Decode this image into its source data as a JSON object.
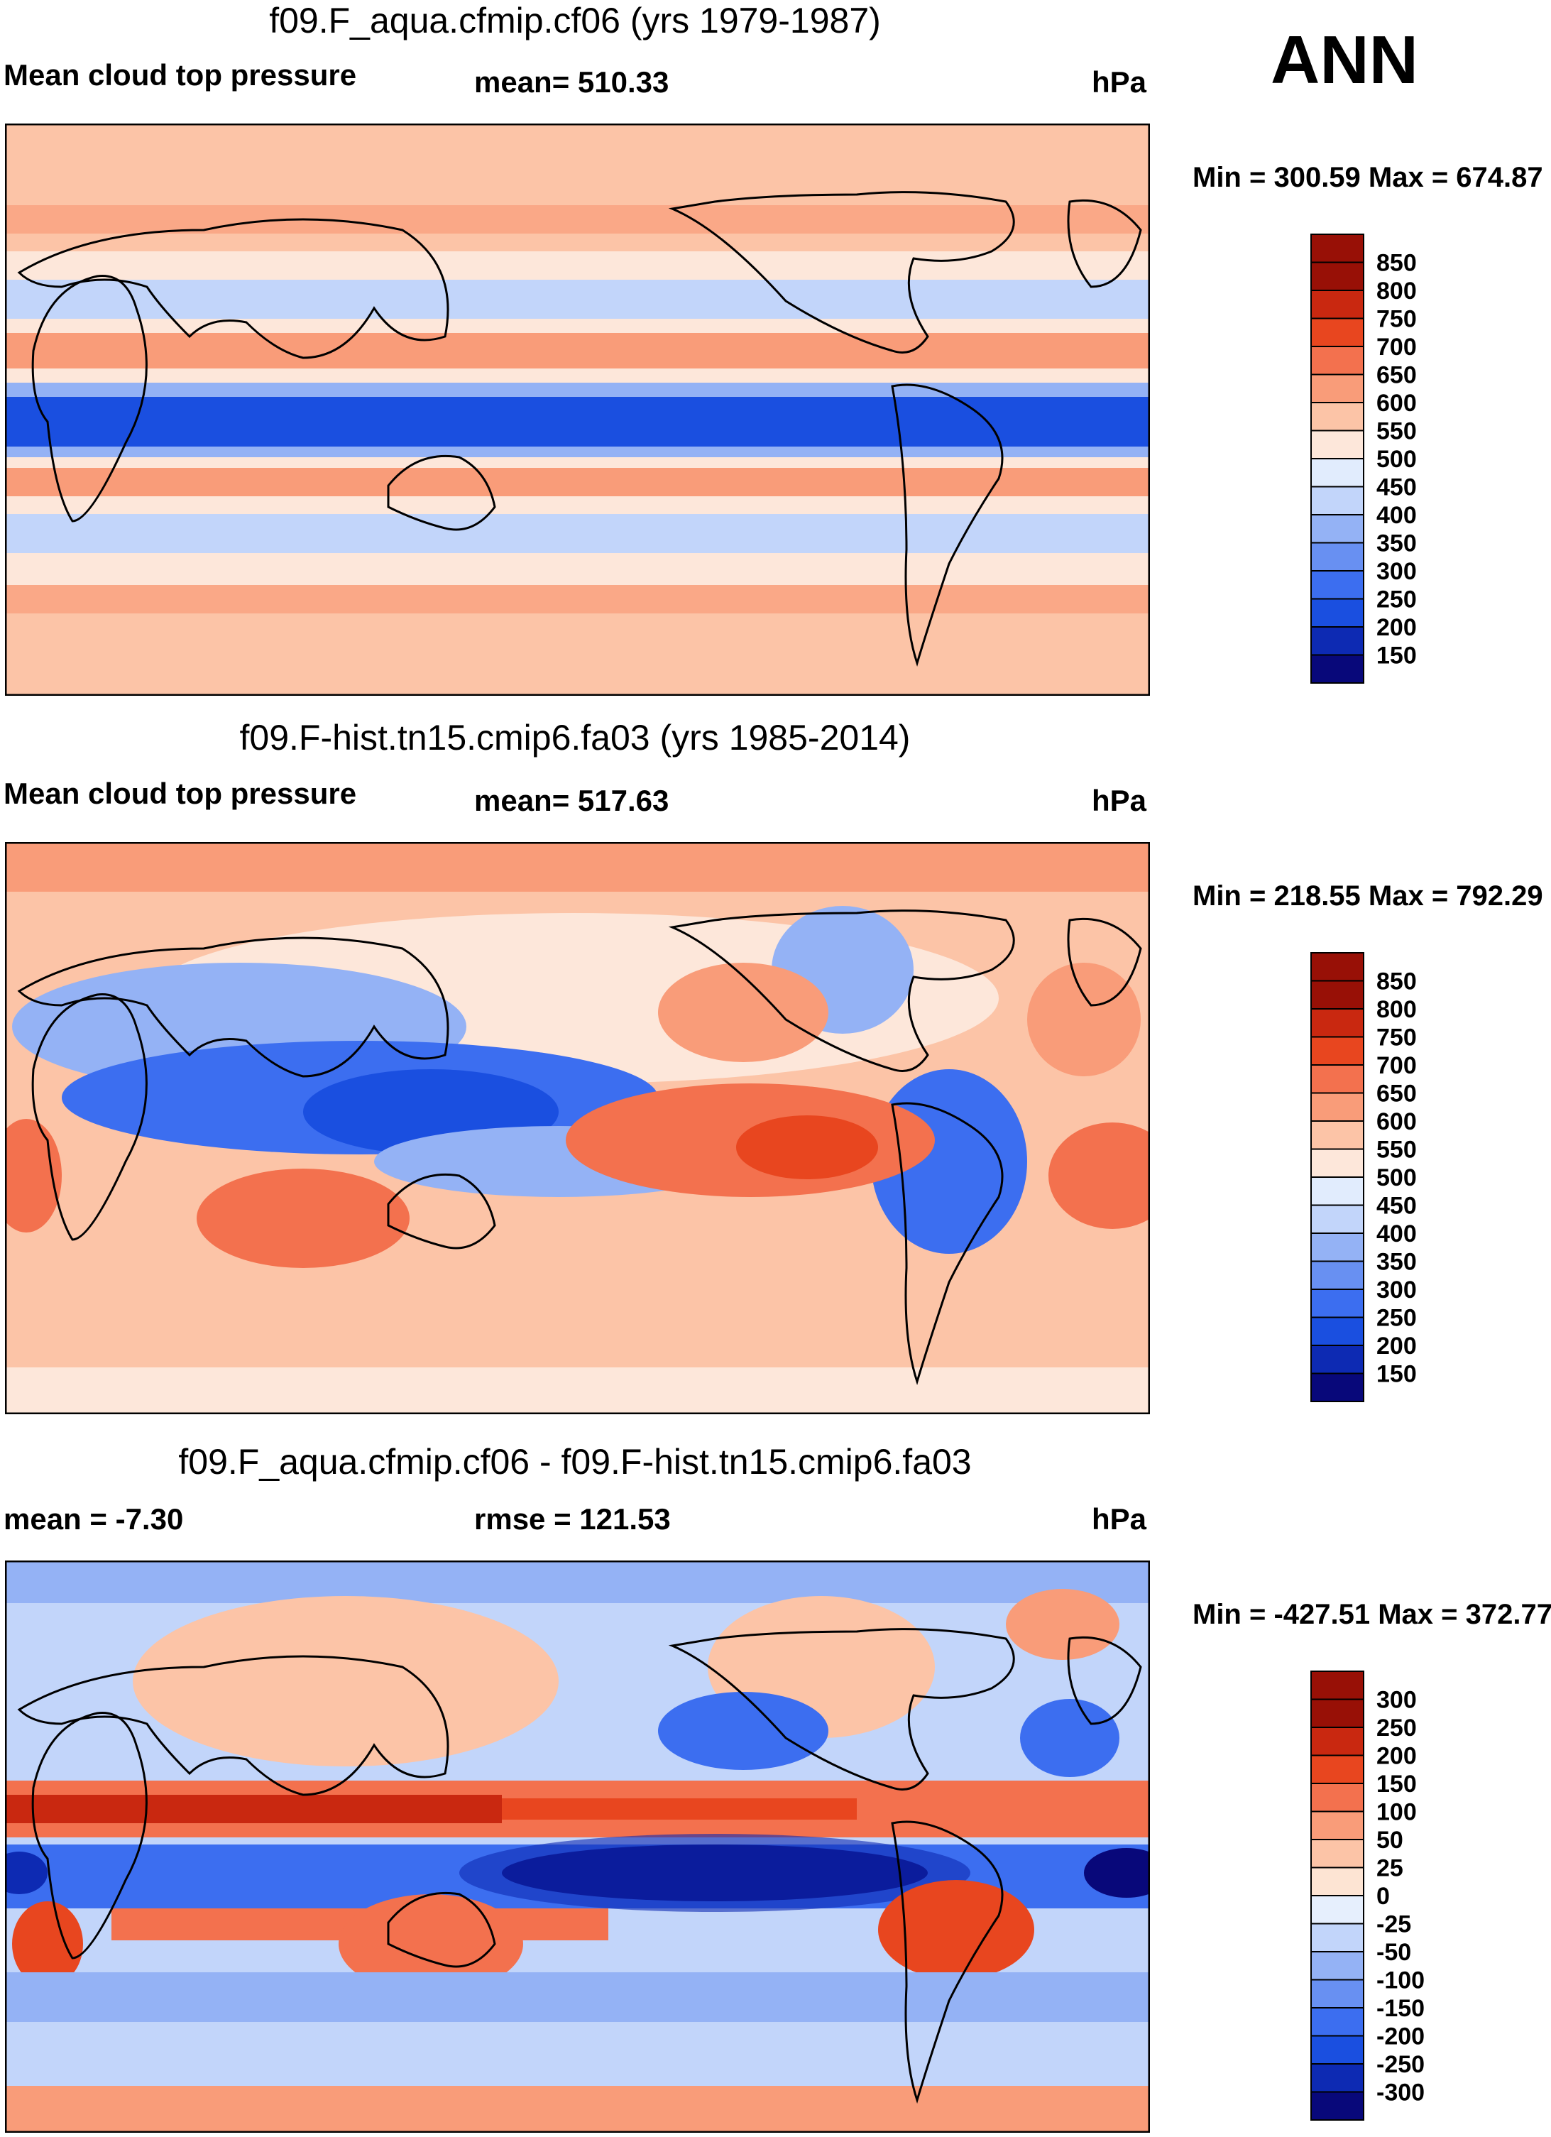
{
  "season": "ANN",
  "palettes": {
    "abs": [
      "#08087a",
      "#0d2ab3",
      "#1a4fe0",
      "#3c6ef0",
      "#6890f2",
      "#94b2f5",
      "#c2d5fa",
      "#e1ecfd",
      "#fde7da",
      "#fcc4a7",
      "#f99c79",
      "#f3714e",
      "#e8461f",
      "#c92810",
      "#981006"
    ],
    "diff": [
      "#08087a",
      "#0d2ab3",
      "#1a4fe0",
      "#3c6ef0",
      "#6890f2",
      "#94b2f5",
      "#c2d5fa",
      "#e6effd",
      "#fde4d3",
      "#fcc4a7",
      "#f99c79",
      "#f3714e",
      "#e8461f",
      "#c92810",
      "#981006"
    ]
  },
  "chart_data": [
    {
      "type": "heatmap",
      "title": "f09.F_aqua.cfmip.cf06 (yrs 1979-1987)",
      "variable_label": "Mean cloud top pressure",
      "stat_label": "mean= 510.33",
      "units": "hPa",
      "minmax_label": "Min = 300.59 Max = 674.87",
      "min": 300.59,
      "max": 674.87,
      "mean": 510.33,
      "colorbar_levels": [
        "850",
        "800",
        "750",
        "700",
        "650",
        "600",
        "550",
        "500",
        "450",
        "400",
        "350",
        "300",
        "250",
        "200",
        "150"
      ]
    },
    {
      "type": "heatmap",
      "title": "f09.F-hist.tn15.cmip6.fa03 (yrs 1985-2014)",
      "variable_label": "Mean cloud top pressure",
      "stat_label": "mean= 517.63",
      "units": "hPa",
      "minmax_label": "Min = 218.55 Max = 792.29",
      "min": 218.55,
      "max": 792.29,
      "mean": 517.63,
      "colorbar_levels": [
        "850",
        "800",
        "750",
        "700",
        "650",
        "600",
        "550",
        "500",
        "450",
        "400",
        "350",
        "300",
        "250",
        "200",
        "150"
      ]
    },
    {
      "type": "heatmap",
      "title": "f09.F_aqua.cfmip.cf06 - f09.F-hist.tn15.cmip6.fa03",
      "variable_label": "mean =  -7.30",
      "stat_label": "rmse = 121.53",
      "units": "hPa",
      "minmax_label": "Min = -427.51 Max = 372.77",
      "min": -427.51,
      "max": 372.77,
      "mean": -7.3,
      "rmse": 121.53,
      "colorbar_levels": [
        "300",
        "250",
        "200",
        "150",
        "100",
        "50",
        "25",
        "0",
        "-25",
        "-50",
        "-100",
        "-150",
        "-200",
        "-250",
        "-300"
      ]
    }
  ]
}
